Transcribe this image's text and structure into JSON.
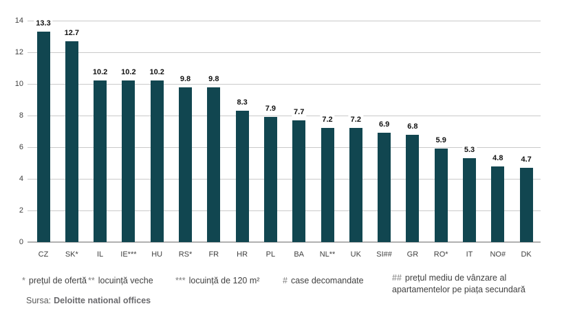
{
  "chart_data": {
    "type": "bar",
    "categories": [
      "CZ",
      "SK*",
      "IL",
      "IE***",
      "HU",
      "RS*",
      "FR",
      "HR",
      "PL",
      "BA",
      "NL**",
      "UK",
      "SI##",
      "GR",
      "RO*",
      "IT",
      "NO#",
      "DK"
    ],
    "values": [
      13.3,
      12.7,
      10.2,
      10.2,
      10.2,
      9.8,
      9.8,
      8.3,
      7.9,
      7.7,
      7.2,
      7.2,
      6.9,
      6.8,
      5.9,
      5.3,
      4.8,
      4.7
    ],
    "title": "",
    "xlabel": "",
    "ylabel": "",
    "ylim": [
      0,
      14
    ],
    "yticks": [
      0,
      2,
      4,
      6,
      8,
      10,
      12,
      14
    ],
    "grid": true,
    "legend": "none",
    "bar_color": "#114650",
    "gridline_color": "#c9c9c9",
    "axis_line_color": "#b0b0b0"
  },
  "footnotes": [
    {
      "marker": "*",
      "text": "prețul de ofertă"
    },
    {
      "marker": "**",
      "text": "locuință veche"
    },
    {
      "marker": "***",
      "text": "locuință de 120 m²"
    },
    {
      "marker": "#",
      "text": "case decomandate"
    },
    {
      "marker": "##",
      "text": "prețul mediu de vânzare al apartamentelor pe piața secundară"
    }
  ],
  "source": {
    "label": "Sursa:",
    "value": "Deloitte national offices"
  }
}
